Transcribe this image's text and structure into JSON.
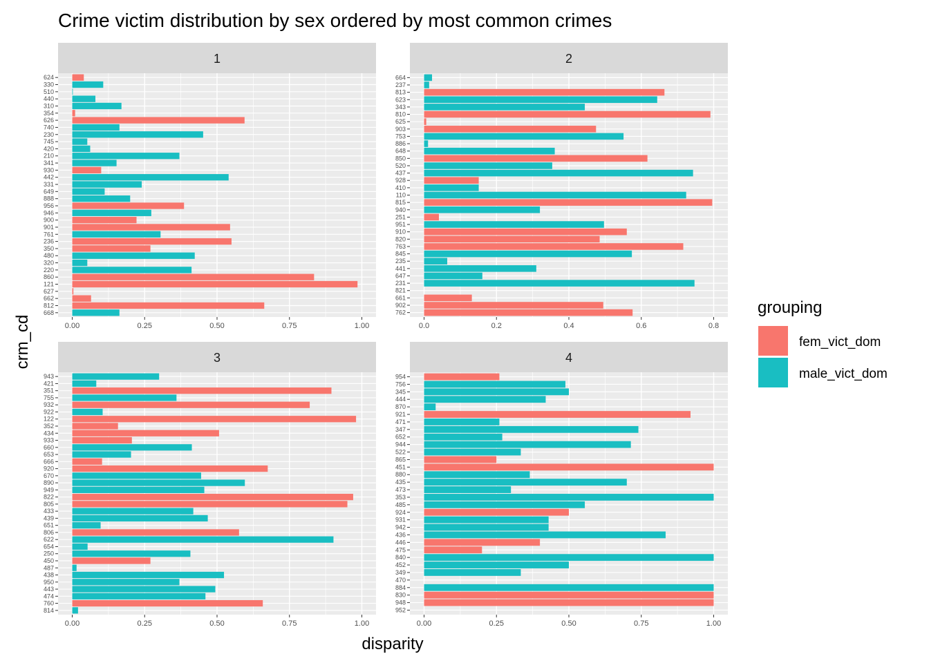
{
  "title": "Crime victim distribution by sex ordered by most common crimes",
  "colors": {
    "fem_vict_dom": "#F8766D",
    "male_vict_dom": "#19BEC2",
    "panel_bg": "#EBEBEB",
    "strip_bg": "#D9D9D9",
    "grid": "#FFFFFF"
  },
  "legend": {
    "title": "grouping",
    "items": [
      {
        "key": "fem_vict_dom",
        "label": "fem_vict_dom"
      },
      {
        "key": "male_vict_dom",
        "label": "male_vict_dom"
      }
    ]
  },
  "chart_data": {
    "type": "bar",
    "orientation": "horizontal",
    "xlabel": "disparity",
    "ylabel": "crm_cd",
    "facets": [
      {
        "strip": "1",
        "xlim": [
          0,
          1.0
        ],
        "xticks": [
          0,
          0.25,
          0.5,
          0.75,
          1.0
        ],
        "xtick_labels": [
          "0.00",
          "0.25",
          "0.50",
          "0.75",
          "1.00"
        ],
        "categories": [
          "624",
          "330",
          "510",
          "440",
          "310",
          "354",
          "626",
          "740",
          "230",
          "745",
          "420",
          "210",
          "341",
          "930",
          "442",
          "331",
          "649",
          "888",
          "956",
          "946",
          "900",
          "901",
          "761",
          "236",
          "350",
          "480",
          "320",
          "220",
          "860",
          "121",
          "627",
          "662",
          "812",
          "668"
        ],
        "values": [
          0.04,
          0.107,
          0.002,
          0.08,
          0.17,
          0.01,
          0.595,
          0.163,
          0.452,
          0.052,
          0.062,
          0.37,
          0.153,
          0.1,
          0.54,
          0.24,
          0.112,
          0.2,
          0.386,
          0.273,
          0.222,
          0.545,
          0.305,
          0.55,
          0.27,
          0.423,
          0.052,
          0.412,
          0.835,
          0.985,
          0.004,
          0.065,
          0.663,
          0.163
        ],
        "groups": [
          "fem_vict_dom",
          "male_vict_dom",
          "male_vict_dom",
          "male_vict_dom",
          "male_vict_dom",
          "fem_vict_dom",
          "fem_vict_dom",
          "male_vict_dom",
          "male_vict_dom",
          "male_vict_dom",
          "male_vict_dom",
          "male_vict_dom",
          "male_vict_dom",
          "fem_vict_dom",
          "male_vict_dom",
          "male_vict_dom",
          "male_vict_dom",
          "male_vict_dom",
          "fem_vict_dom",
          "male_vict_dom",
          "fem_vict_dom",
          "fem_vict_dom",
          "male_vict_dom",
          "fem_vict_dom",
          "fem_vict_dom",
          "male_vict_dom",
          "male_vict_dom",
          "male_vict_dom",
          "fem_vict_dom",
          "fem_vict_dom",
          "fem_vict_dom",
          "fem_vict_dom",
          "fem_vict_dom",
          "male_vict_dom"
        ]
      },
      {
        "strip": "2",
        "xlim": [
          0,
          0.8
        ],
        "xticks": [
          0,
          0.2,
          0.4,
          0.6,
          0.8
        ],
        "xtick_labels": [
          "0.0",
          "0.2",
          "0.4",
          "0.6",
          "0.8"
        ],
        "categories": [
          "664",
          "237",
          "813",
          "623",
          "343",
          "810",
          "625",
          "903",
          "753",
          "886",
          "648",
          "850",
          "520",
          "437",
          "928",
          "410",
          "110",
          "815",
          "940",
          "251",
          "951",
          "910",
          "820",
          "763",
          "845",
          "235",
          "441",
          "647",
          "231",
          "821",
          "661",
          "902",
          "762"
        ],
        "values": [
          0.022,
          0.014,
          0.664,
          0.644,
          0.444,
          0.791,
          0.006,
          0.475,
          0.551,
          0.011,
          0.361,
          0.617,
          0.354,
          0.743,
          0.151,
          0.151,
          0.724,
          0.796,
          0.32,
          0.041,
          0.497,
          0.56,
          0.485,
          0.716,
          0.574,
          0.064,
          0.31,
          0.161,
          0.747,
          0.0,
          0.132,
          0.495,
          0.576
        ],
        "groups": [
          "male_vict_dom",
          "male_vict_dom",
          "fem_vict_dom",
          "male_vict_dom",
          "male_vict_dom",
          "fem_vict_dom",
          "fem_vict_dom",
          "fem_vict_dom",
          "male_vict_dom",
          "male_vict_dom",
          "male_vict_dom",
          "fem_vict_dom",
          "male_vict_dom",
          "male_vict_dom",
          "fem_vict_dom",
          "male_vict_dom",
          "male_vict_dom",
          "fem_vict_dom",
          "male_vict_dom",
          "fem_vict_dom",
          "male_vict_dom",
          "fem_vict_dom",
          "fem_vict_dom",
          "fem_vict_dom",
          "male_vict_dom",
          "male_vict_dom",
          "male_vict_dom",
          "male_vict_dom",
          "male_vict_dom",
          "male_vict_dom",
          "fem_vict_dom",
          "fem_vict_dom",
          "fem_vict_dom"
        ]
      },
      {
        "strip": "3",
        "xlim": [
          0,
          1.0
        ],
        "xticks": [
          0,
          0.25,
          0.5,
          0.75,
          1.0
        ],
        "xtick_labels": [
          "0.00",
          "0.25",
          "0.50",
          "0.75",
          "1.00"
        ],
        "categories": [
          "943",
          "421",
          "351",
          "755",
          "932",
          "922",
          "122",
          "352",
          "434",
          "933",
          "660",
          "653",
          "666",
          "920",
          "670",
          "890",
          "949",
          "822",
          "805",
          "433",
          "439",
          "651",
          "806",
          "622",
          "654",
          "250",
          "450",
          "487",
          "438",
          "950",
          "443",
          "474",
          "760",
          "814"
        ],
        "values": [
          0.3,
          0.083,
          0.895,
          0.36,
          0.82,
          0.105,
          0.98,
          0.158,
          0.507,
          0.206,
          0.413,
          0.203,
          0.103,
          0.675,
          0.445,
          0.596,
          0.456,
          0.97,
          0.95,
          0.418,
          0.468,
          0.098,
          0.576,
          0.902,
          0.053,
          0.408,
          0.27,
          0.015,
          0.524,
          0.37,
          0.494,
          0.46,
          0.658,
          0.02
        ],
        "groups": [
          "male_vict_dom",
          "male_vict_dom",
          "fem_vict_dom",
          "male_vict_dom",
          "fem_vict_dom",
          "male_vict_dom",
          "fem_vict_dom",
          "fem_vict_dom",
          "fem_vict_dom",
          "fem_vict_dom",
          "male_vict_dom",
          "male_vict_dom",
          "fem_vict_dom",
          "fem_vict_dom",
          "male_vict_dom",
          "male_vict_dom",
          "male_vict_dom",
          "fem_vict_dom",
          "fem_vict_dom",
          "male_vict_dom",
          "male_vict_dom",
          "male_vict_dom",
          "fem_vict_dom",
          "male_vict_dom",
          "male_vict_dom",
          "male_vict_dom",
          "fem_vict_dom",
          "male_vict_dom",
          "male_vict_dom",
          "male_vict_dom",
          "male_vict_dom",
          "male_vict_dom",
          "fem_vict_dom",
          "male_vict_dom"
        ]
      },
      {
        "strip": "4",
        "xlim": [
          0,
          1.0
        ],
        "xticks": [
          0,
          0.25,
          0.5,
          0.75,
          1.0
        ],
        "xtick_labels": [
          "0.00",
          "0.25",
          "0.50",
          "0.75",
          "1.00"
        ],
        "categories": [
          "954",
          "756",
          "345",
          "444",
          "870",
          "921",
          "471",
          "347",
          "652",
          "944",
          "522",
          "865",
          "451",
          "880",
          "435",
          "473",
          "353",
          "485",
          "924",
          "931",
          "942",
          "436",
          "446",
          "475",
          "840",
          "452",
          "349",
          "470",
          "884",
          "830",
          "948",
          "952"
        ],
        "values": [
          0.26,
          0.488,
          0.5,
          0.42,
          0.04,
          0.92,
          0.26,
          0.74,
          0.27,
          0.714,
          0.334,
          0.25,
          1.0,
          0.365,
          0.7,
          0.3,
          1.0,
          0.555,
          0.5,
          0.43,
          0.43,
          0.834,
          0.4,
          0.2,
          1.0,
          0.5,
          0.334,
          0.0,
          1.0,
          1.0,
          1.0,
          0.0
        ],
        "groups": [
          "fem_vict_dom",
          "male_vict_dom",
          "male_vict_dom",
          "male_vict_dom",
          "male_vict_dom",
          "fem_vict_dom",
          "male_vict_dom",
          "male_vict_dom",
          "male_vict_dom",
          "male_vict_dom",
          "male_vict_dom",
          "fem_vict_dom",
          "fem_vict_dom",
          "male_vict_dom",
          "male_vict_dom",
          "male_vict_dom",
          "male_vict_dom",
          "male_vict_dom",
          "fem_vict_dom",
          "male_vict_dom",
          "male_vict_dom",
          "male_vict_dom",
          "fem_vict_dom",
          "fem_vict_dom",
          "male_vict_dom",
          "male_vict_dom",
          "male_vict_dom",
          "male_vict_dom",
          "male_vict_dom",
          "fem_vict_dom",
          "fem_vict_dom",
          "fem_vict_dom"
        ]
      }
    ],
    "grid": true,
    "legend_position": "right"
  }
}
